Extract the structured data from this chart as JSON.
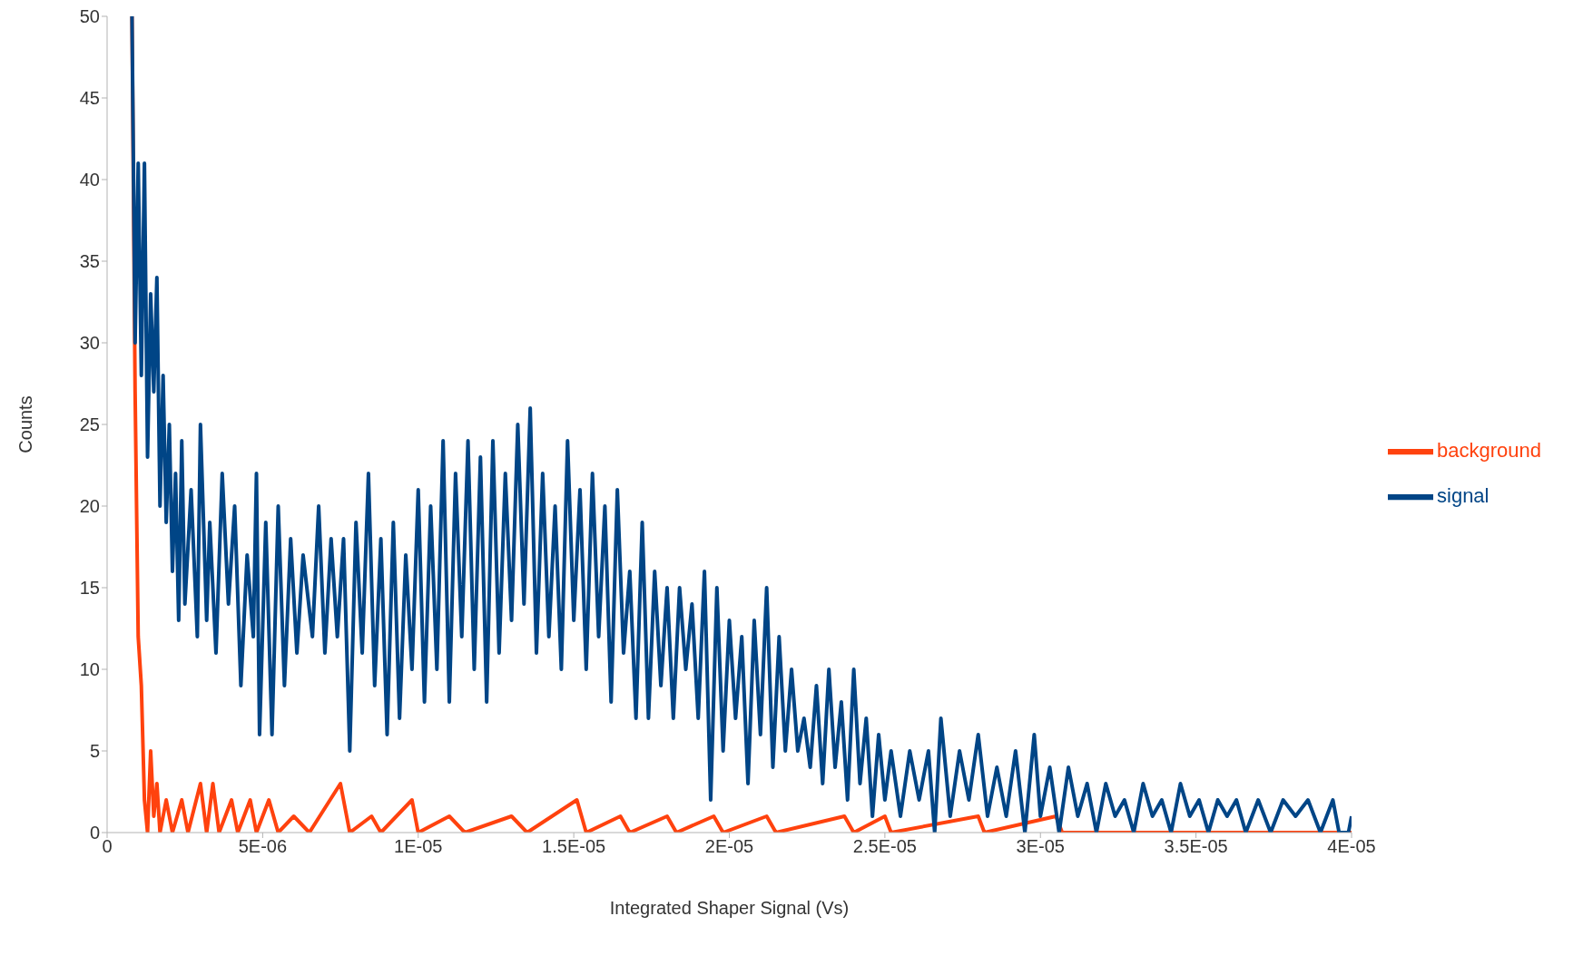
{
  "chart_data": {
    "type": "line",
    "xlabel": "Integrated Shaper Signal (Vs)",
    "ylabel": "Counts",
    "xlim": [
      0,
      4e-05
    ],
    "xticks": [
      0,
      {
        "value": 5e-06,
        "label": "5E-06"
      },
      {
        "value": 1e-05,
        "label": "1E-05"
      },
      {
        "value": 1.5e-05,
        "label": "1.5E-05"
      },
      {
        "value": 2e-05,
        "label": "2E-05"
      },
      {
        "value": 2.5e-05,
        "label": "2.5E-05"
      },
      {
        "value": 3e-05,
        "label": "3E-05"
      },
      {
        "value": 3.5e-05,
        "label": "3.5E-05"
      },
      {
        "value": 4e-05,
        "label": "4E-05"
      }
    ],
    "ylim": [
      0,
      50
    ],
    "yticks": [
      0,
      5,
      10,
      15,
      20,
      25,
      30,
      35,
      40,
      45,
      50
    ],
    "grid": false,
    "legend": "right",
    "marker": "none",
    "line_style": "solid",
    "series": [
      {
        "name": "signal",
        "color": "#004586",
        "x": [
          8e-07,
          9e-07,
          1e-06,
          1.1e-06,
          1.2e-06,
          1.3e-06,
          1.4e-06,
          1.5e-06,
          1.6e-06,
          1.7e-06,
          1.8e-06,
          1.9e-06,
          2e-06,
          2.1e-06,
          2.2e-06,
          2.3e-06,
          2.4e-06,
          2.5e-06,
          2.7e-06,
          2.9e-06,
          3e-06,
          3.2e-06,
          3.3e-06,
          3.5e-06,
          3.7e-06,
          3.9e-06,
          4.1e-06,
          4.3e-06,
          4.5e-06,
          4.7e-06,
          4.8e-06,
          4.9e-06,
          5.1e-06,
          5.3e-06,
          5.5e-06,
          5.7e-06,
          5.9e-06,
          6.1e-06,
          6.3e-06,
          6.6e-06,
          6.8e-06,
          7e-06,
          7.2e-06,
          7.4e-06,
          7.6e-06,
          7.8e-06,
          8e-06,
          8.2e-06,
          8.4e-06,
          8.6e-06,
          8.8e-06,
          9e-06,
          9.2e-06,
          9.4e-06,
          9.6e-06,
          9.8e-06,
          1e-05,
          1.02e-05,
          1.04e-05,
          1.06e-05,
          1.08e-05,
          1.1e-05,
          1.12e-05,
          1.14e-05,
          1.16e-05,
          1.18e-05,
          1.2e-05,
          1.22e-05,
          1.24e-05,
          1.26e-05,
          1.28e-05,
          1.3e-05,
          1.32e-05,
          1.34e-05,
          1.36e-05,
          1.38e-05,
          1.4e-05,
          1.42e-05,
          1.44e-05,
          1.46e-05,
          1.48e-05,
          1.5e-05,
          1.52e-05,
          1.54e-05,
          1.56e-05,
          1.58e-05,
          1.6e-05,
          1.62e-05,
          1.64e-05,
          1.66e-05,
          1.68e-05,
          1.7e-05,
          1.72e-05,
          1.74e-05,
          1.76e-05,
          1.78e-05,
          1.8e-05,
          1.82e-05,
          1.84e-05,
          1.86e-05,
          1.88e-05,
          1.9e-05,
          1.92e-05,
          1.94e-05,
          1.96e-05,
          1.98e-05,
          2e-05,
          2.02e-05,
          2.04e-05,
          2.06e-05,
          2.08e-05,
          2.1e-05,
          2.12e-05,
          2.14e-05,
          2.16e-05,
          2.18e-05,
          2.2e-05,
          2.22e-05,
          2.24e-05,
          2.26e-05,
          2.28e-05,
          2.3e-05,
          2.32e-05,
          2.34e-05,
          2.36e-05,
          2.38e-05,
          2.4e-05,
          2.42e-05,
          2.44e-05,
          2.46e-05,
          2.48e-05,
          2.5e-05,
          2.52e-05,
          2.55e-05,
          2.58e-05,
          2.61e-05,
          2.64e-05,
          2.66e-05,
          2.68e-05,
          2.71e-05,
          2.74e-05,
          2.77e-05,
          2.8e-05,
          2.83e-05,
          2.86e-05,
          2.89e-05,
          2.92e-05,
          2.95e-05,
          2.98e-05,
          3e-05,
          3.03e-05,
          3.06e-05,
          3.09e-05,
          3.12e-05,
          3.15e-05,
          3.18e-05,
          3.21e-05,
          3.24e-05,
          3.27e-05,
          3.3e-05,
          3.33e-05,
          3.36e-05,
          3.39e-05,
          3.42e-05,
          3.45e-05,
          3.48e-05,
          3.51e-05,
          3.54e-05,
          3.57e-05,
          3.6e-05,
          3.63e-05,
          3.66e-05,
          3.7e-05,
          3.74e-05,
          3.78e-05,
          3.82e-05,
          3.86e-05,
          3.9e-05,
          3.94e-05,
          3.96e-05,
          3.99e-05,
          4e-05
        ],
        "values": [
          50,
          30,
          41,
          28,
          41,
          23,
          33,
          27,
          34,
          20,
          28,
          19,
          25,
          16,
          22,
          13,
          24,
          14,
          21,
          12,
          25,
          13,
          19,
          11,
          22,
          14,
          20,
          9,
          17,
          12,
          22,
          6,
          19,
          6,
          20,
          9,
          18,
          11,
          17,
          12,
          20,
          11,
          18,
          12,
          18,
          5,
          19,
          11,
          22,
          9,
          18,
          6,
          19,
          7,
          17,
          10,
          21,
          8,
          20,
          10,
          24,
          8,
          22,
          12,
          24,
          10,
          23,
          8,
          24,
          11,
          22,
          13,
          25,
          14,
          26,
          11,
          22,
          12,
          20,
          10,
          24,
          13,
          21,
          10,
          22,
          12,
          20,
          8,
          21,
          11,
          16,
          7,
          19,
          7,
          16,
          9,
          15,
          7,
          15,
          10,
          14,
          7,
          16,
          2,
          15,
          5,
          13,
          7,
          12,
          3,
          13,
          6,
          15,
          4,
          12,
          5,
          10,
          5,
          7,
          4,
          9,
          3,
          10,
          4,
          8,
          2,
          10,
          3,
          7,
          1,
          6,
          2,
          5,
          1,
          5,
          2,
          5,
          0,
          7,
          1,
          5,
          2,
          6,
          1,
          4,
          1,
          5,
          0,
          6,
          1,
          4,
          0,
          4,
          1,
          3,
          0,
          3,
          1,
          2,
          0,
          3,
          1,
          2,
          0,
          3,
          1,
          2,
          0,
          2,
          1,
          2,
          0,
          2,
          0,
          2,
          1,
          2,
          0,
          2,
          0,
          0,
          1
        ]
      },
      {
        "name": "background",
        "color": "#ff420e",
        "x": [
          8e-07,
          9e-07,
          1e-06,
          1.1e-06,
          1.2e-06,
          1.3e-06,
          1.4e-06,
          1.5e-06,
          1.6e-06,
          1.7e-06,
          1.9e-06,
          2.1e-06,
          2.4e-06,
          2.6e-06,
          3e-06,
          3.2e-06,
          3.4e-06,
          3.6e-06,
          4e-06,
          4.2e-06,
          4.6e-06,
          4.8e-06,
          5.2e-06,
          5.5e-06,
          6e-06,
          6.5e-06,
          7.5e-06,
          7.8e-06,
          8.5e-06,
          8.8e-06,
          9.8e-06,
          1e-05,
          1.1e-05,
          1.15e-05,
          1.3e-05,
          1.35e-05,
          1.51e-05,
          1.54e-05,
          1.65e-05,
          1.68e-05,
          1.8e-05,
          1.83e-05,
          1.95e-05,
          1.98e-05,
          2.12e-05,
          2.15e-05,
          2.37e-05,
          2.4e-05,
          2.5e-05,
          2.52e-05,
          2.8e-05,
          2.82e-05,
          3.05e-05,
          3.07e-05,
          4e-05
        ],
        "values": [
          50,
          27,
          12,
          9,
          2,
          0,
          5,
          1,
          3,
          0,
          2,
          0,
          2,
          0,
          3,
          0,
          3,
          0,
          2,
          0,
          2,
          0,
          2,
          0,
          1,
          0,
          3,
          0,
          1,
          0,
          2,
          0,
          1,
          0,
          1,
          0,
          2,
          0,
          1,
          0,
          1,
          0,
          1,
          0,
          1,
          0,
          1,
          0,
          1,
          0,
          1,
          0,
          1,
          0,
          0
        ]
      }
    ]
  }
}
